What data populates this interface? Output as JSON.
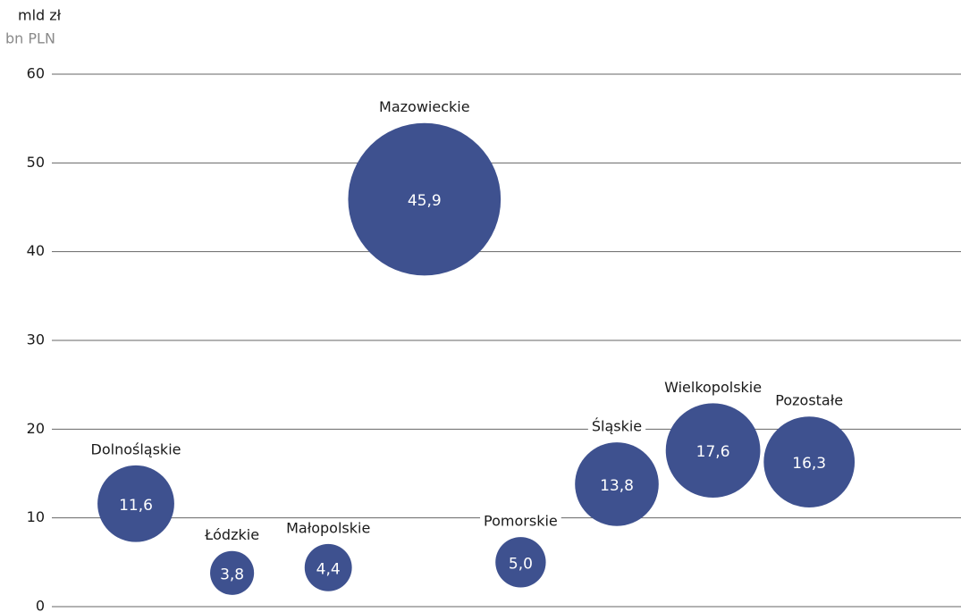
{
  "chart_data": {
    "type": "bubble",
    "y_unit_label": "mld zł",
    "y_unit_label_en": "bn PLN",
    "categories": [
      "Dolnośląskie",
      "Łódzkie",
      "Małopolskie",
      "Mazowieckie",
      "Pomorskie",
      "Śląskie",
      "Wielkopolskie",
      "Pozostałe"
    ],
    "values": [
      11.6,
      3.8,
      4.4,
      45.9,
      5.0,
      13.8,
      17.6,
      16.3
    ],
    "value_labels": [
      "11,6",
      "3,8",
      "4,4",
      "45,9",
      "5,0",
      "13,8",
      "17,6",
      "16,3"
    ],
    "color": "#3e518f",
    "ylim": [
      0,
      60
    ],
    "yticks": [
      0,
      10,
      20,
      30,
      40,
      50,
      60
    ],
    "grid": true
  }
}
